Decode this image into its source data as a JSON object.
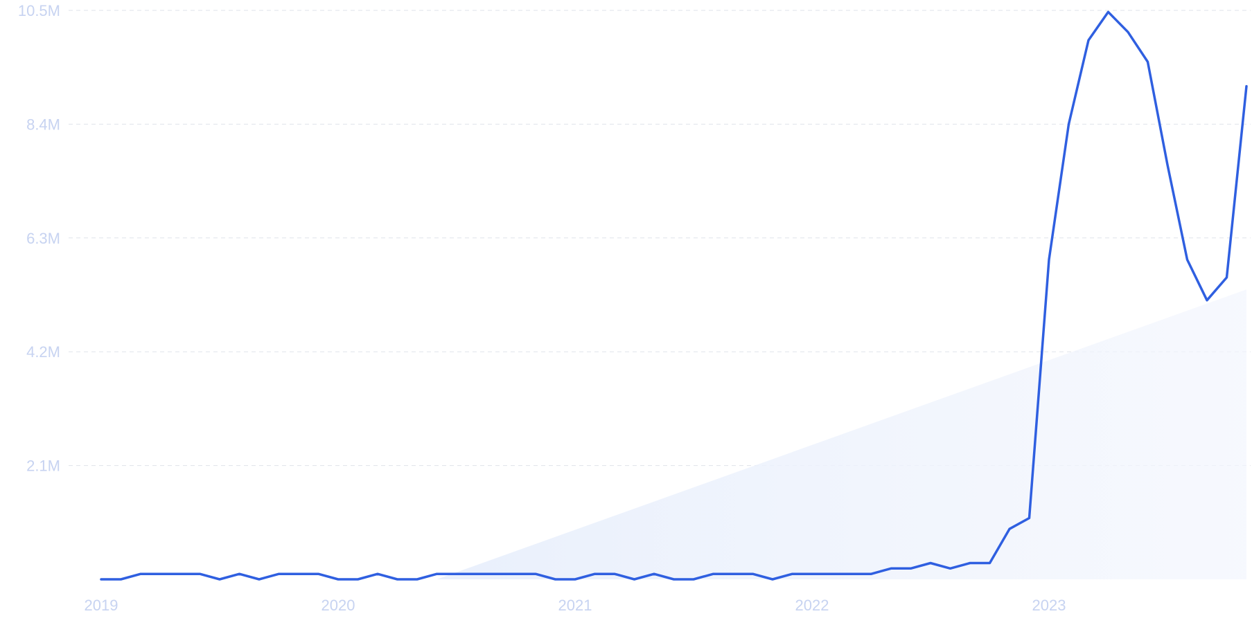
{
  "chart_data": {
    "type": "line",
    "title": "",
    "xlabel": "",
    "ylabel": "",
    "x_ticks": [
      "2019",
      "2020",
      "2021",
      "2022",
      "2023"
    ],
    "y_ticks": [
      "10.5M",
      "8.4M",
      "6.3M",
      "4.2M",
      "2.1M"
    ],
    "y_tick_values": [
      10500000,
      8400000,
      6300000,
      4200000,
      2100000
    ],
    "ylim": [
      0,
      10500000
    ],
    "xlim": [
      "2019-01",
      "2023-11"
    ],
    "grid": true,
    "legend": "none",
    "colors": {
      "line": "#2f5fe0",
      "trend_fill": "#e6eefb",
      "grid": "#dfe3ea",
      "tick_text": "#c7d3f1"
    },
    "series": [
      {
        "x": [
          "2019-01",
          "2019-02",
          "2019-03",
          "2019-04",
          "2019-05",
          "2019-06",
          "2019-07",
          "2019-08",
          "2019-09",
          "2019-10",
          "2019-11",
          "2019-12",
          "2020-01",
          "2020-02",
          "2020-03",
          "2020-04",
          "2020-05",
          "2020-06",
          "2020-07",
          "2020-08",
          "2020-09",
          "2020-10",
          "2020-11",
          "2020-12",
          "2021-01",
          "2021-02",
          "2021-03",
          "2021-04",
          "2021-05",
          "2021-06",
          "2021-07",
          "2021-08",
          "2021-09",
          "2021-10",
          "2021-11",
          "2021-12",
          "2022-01",
          "2022-02",
          "2022-03",
          "2022-04",
          "2022-05",
          "2022-06",
          "2022-07",
          "2022-08",
          "2022-09",
          "2022-10",
          "2022-11",
          "2022-12",
          "2023-01",
          "2023-02",
          "2023-03",
          "2023-04",
          "2023-05",
          "2023-06",
          "2023-07",
          "2023-08",
          "2023-09",
          "2023-10",
          "2023-11"
        ],
        "values": [
          0,
          0,
          100000,
          100000,
          100000,
          100000,
          0,
          100000,
          0,
          100000,
          100000,
          100000,
          0,
          0,
          100000,
          0,
          0,
          100000,
          100000,
          100000,
          100000,
          100000,
          100000,
          0,
          0,
          100000,
          100000,
          0,
          100000,
          0,
          0,
          100000,
          100000,
          100000,
          0,
          100000,
          100000,
          100000,
          100000,
          100000,
          200000,
          200000,
          300000,
          200000,
          300000,
          300000,
          930000,
          1130000,
          5900000,
          8400000,
          9950000,
          10470000,
          10100000,
          9550000,
          7650000,
          5900000,
          5150000,
          5570000,
          9100000
        ]
      }
    ],
    "trend": {
      "type": "area",
      "start": {
        "x": "2020-06",
        "value": 0
      },
      "end": {
        "x": "2023-11",
        "value": 5350000
      }
    }
  }
}
